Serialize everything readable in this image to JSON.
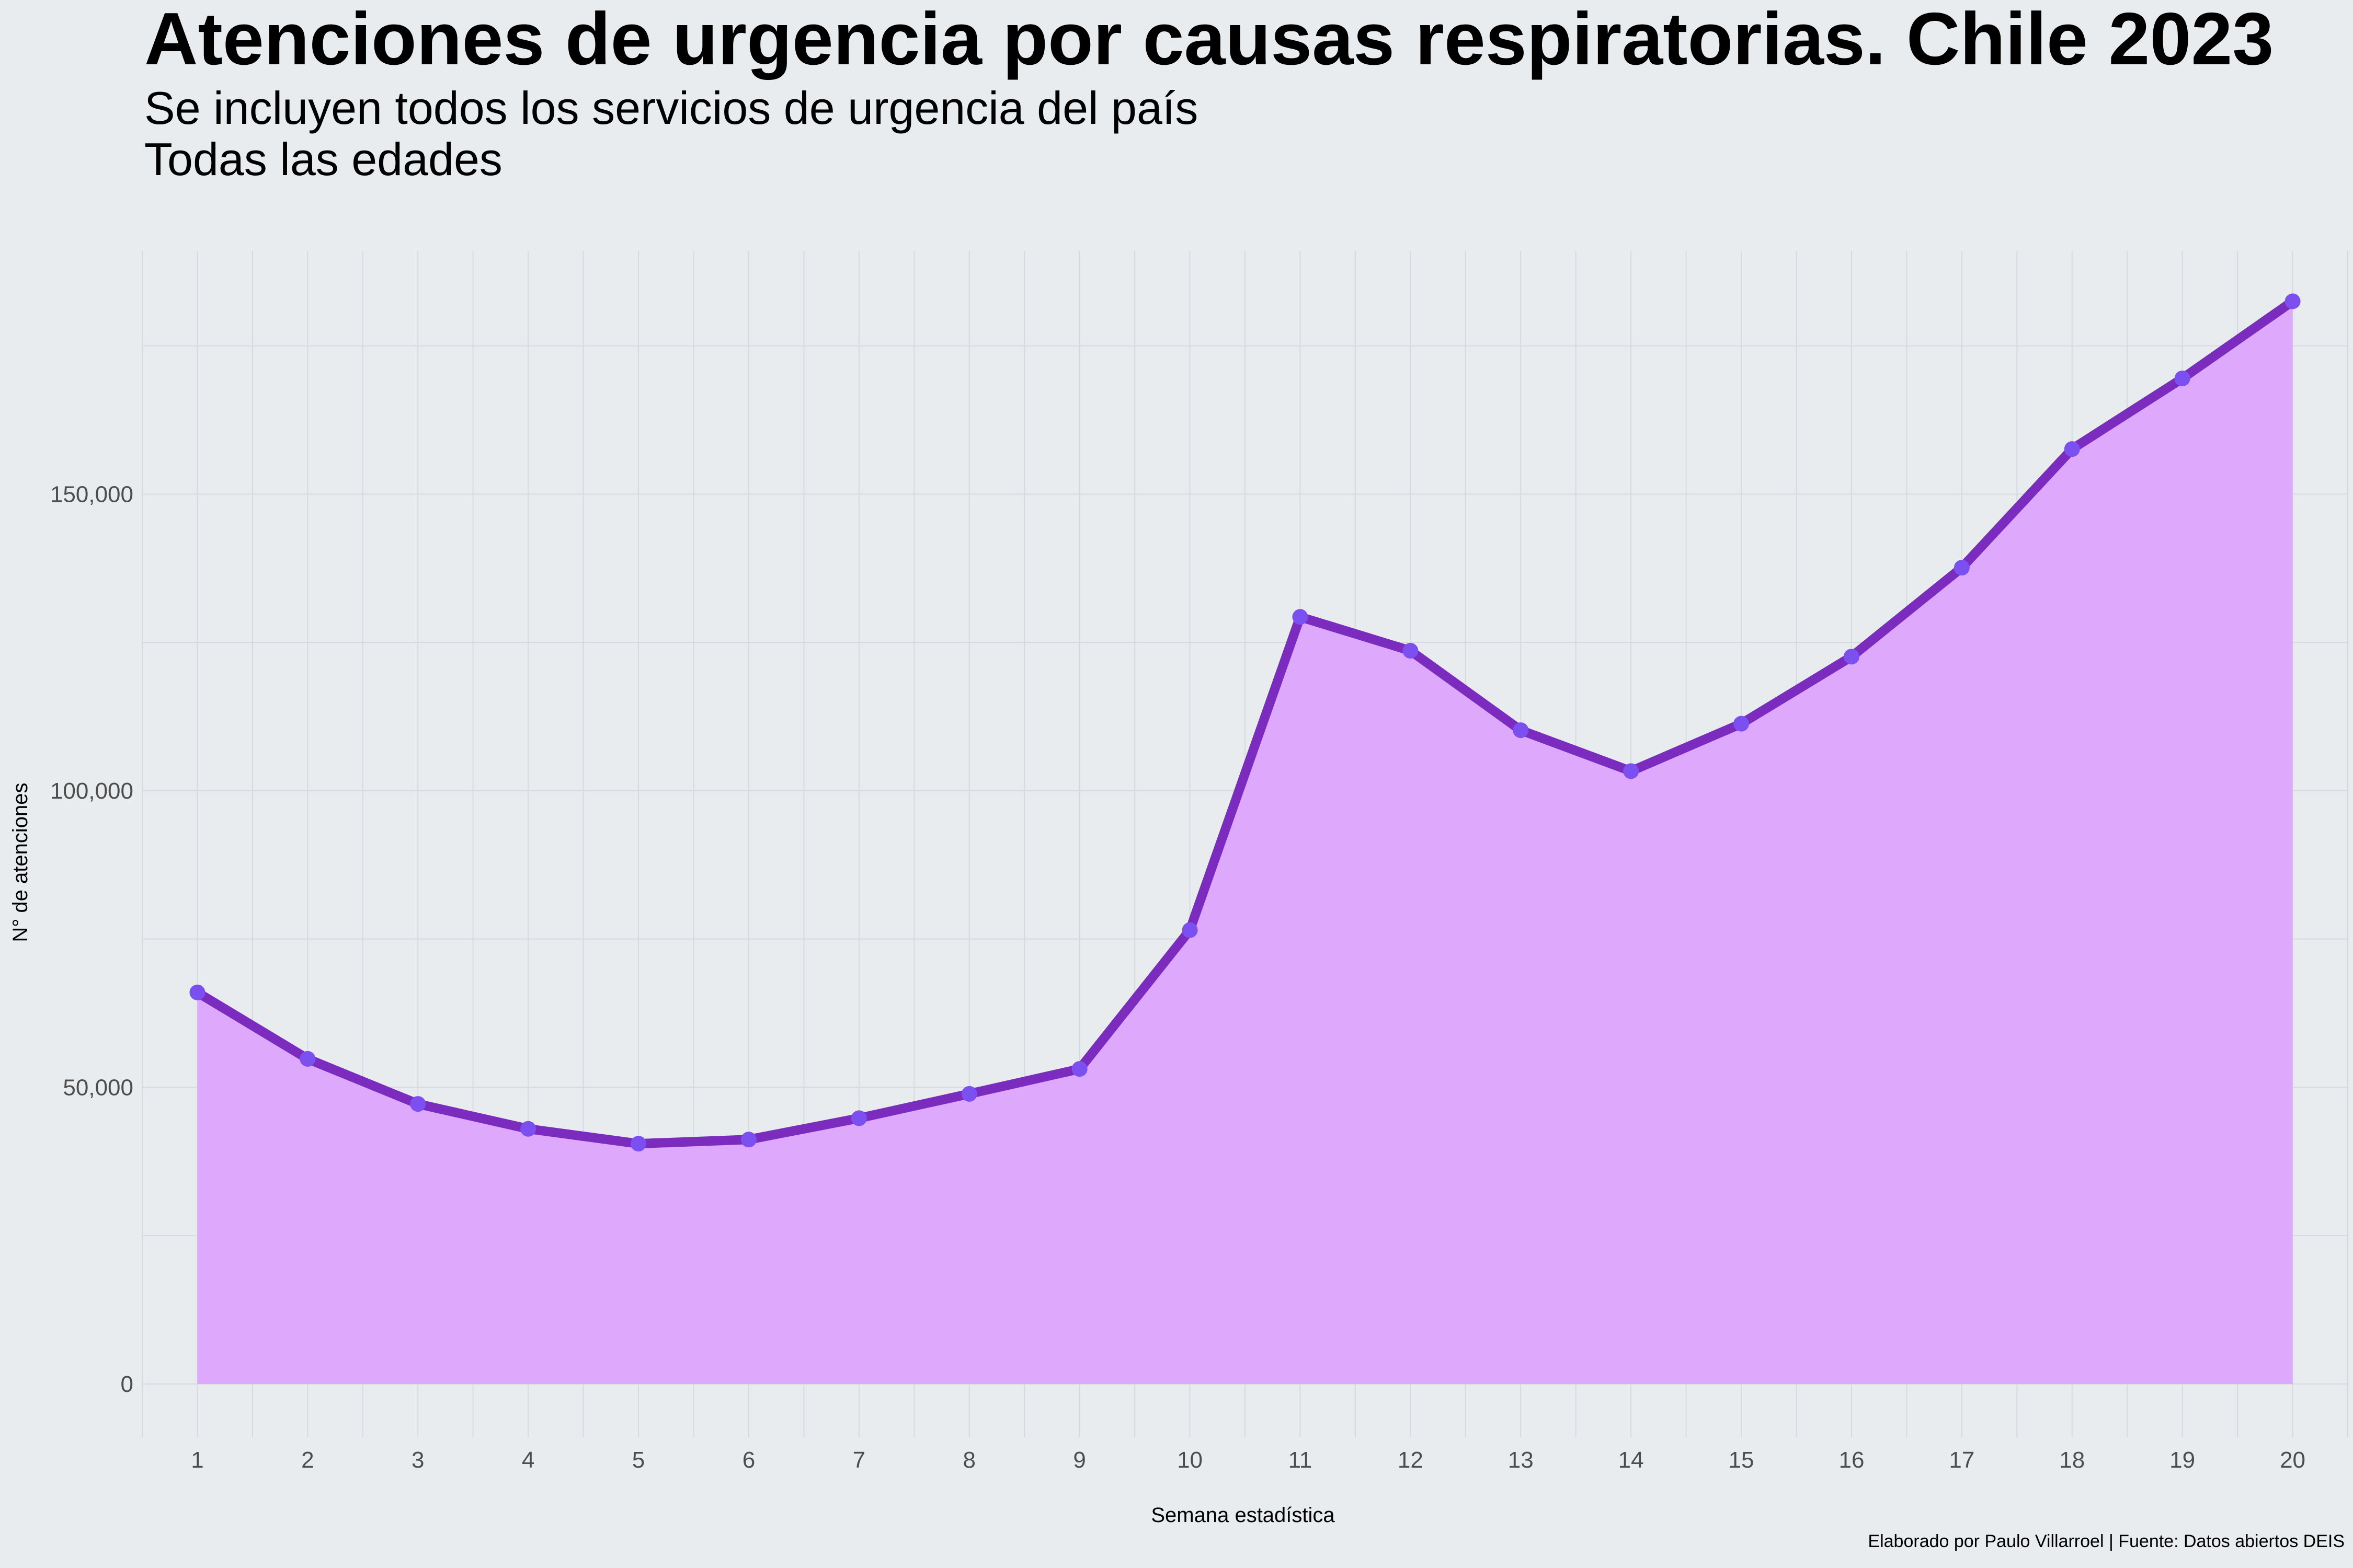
{
  "title": "Atenciones de urgencia por causas respiratorias. Chile 2023",
  "subtitle": "Se incluyen todos los servicios de urgencia del país",
  "subtitle2": "Todas las edades",
  "caption": "Elaborado por Paulo Villarroel | Fuente: Datos abiertos DEIS",
  "colors": {
    "background": "#e8ecef",
    "grid": "#d6d9de",
    "area_fill": "#dea8fc",
    "line": "#7b2cbf",
    "point": "#7b4ff0"
  },
  "chart_data": {
    "type": "area",
    "x": [
      1,
      2,
      3,
      4,
      5,
      6,
      7,
      8,
      9,
      10,
      11,
      12,
      13,
      14,
      15,
      16,
      17,
      18,
      19,
      20
    ],
    "x_tick_labels": [
      "1",
      "2",
      "3",
      "4",
      "5",
      "6",
      "7",
      "8",
      "9",
      "10",
      "11",
      "12",
      "13",
      "14",
      "15",
      "16",
      "17",
      "18",
      "19",
      "20"
    ],
    "values": [
      66000,
      54800,
      47200,
      43000,
      40500,
      41200,
      44800,
      48900,
      53100,
      76500,
      129300,
      123600,
      110200,
      103300,
      111300,
      122600,
      137600,
      157600,
      169500,
      182500
    ],
    "y_ticks": [
      0,
      50000,
      100000,
      150000
    ],
    "y_tick_labels": [
      "0",
      "50,000",
      "100,000",
      "150,000"
    ],
    "xlabel": "Semana estadística",
    "ylabel": "N° de atenciones",
    "xlim": [
      0.5,
      20.5
    ],
    "ylim": [
      -9000,
      191000
    ],
    "grid": true,
    "points": true
  }
}
